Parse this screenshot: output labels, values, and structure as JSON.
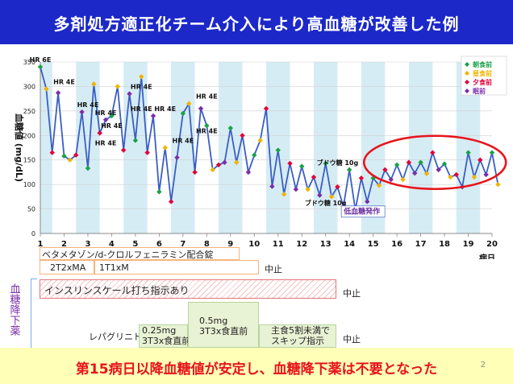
{
  "title": "多剤処方適正化チーム介入により高血糖が改善した例",
  "bottom_text": "第15病日以降血糖値が安定し、血糖降下薬は不要となった",
  "page_number": "2",
  "side_label": "血糖降下薬",
  "chart_data": {
    "type": "line",
    "ylabel": "血糖値 (mg/dL)",
    "xlabel": "病日",
    "ylim": [
      0,
      350
    ],
    "yticks": [
      0,
      50,
      100,
      150,
      200,
      250,
      300,
      350
    ],
    "xlim": [
      1,
      20
    ],
    "xticks": [
      "1",
      "2",
      "3",
      "4",
      "5",
      "6",
      "7",
      "8",
      "9",
      "10",
      "11",
      "12",
      "13",
      "14",
      "15",
      "16",
      "17",
      "18",
      "19",
      "20"
    ],
    "shaded_days": [
      1,
      3,
      5,
      7,
      9,
      11,
      13,
      15,
      17,
      19
    ],
    "legend": [
      "朝食前",
      "昼食前",
      "夕食前",
      "眠前"
    ],
    "legend_colors": [
      "#1aa049",
      "#f0b400",
      "#e0003c",
      "#7a2ea8"
    ],
    "line_color": "#3a5fc4",
    "values": [
      340,
      295,
      165,
      287,
      158,
      150,
      160,
      248,
      133,
      305,
      205,
      232,
      240,
      300,
      170,
      285,
      190,
      320,
      165,
      240,
      85,
      175,
      65,
      155,
      245,
      265,
      125,
      255,
      220,
      130,
      140,
      145,
      215,
      145,
      200,
      125,
      160,
      190,
      255,
      96,
      170,
      80,
      143,
      90,
      137,
      90,
      115,
      78,
      143,
      75,
      95,
      55,
      130,
      48,
      113,
      65,
      113,
      98,
      130,
      110,
      140,
      110,
      145,
      123,
      145,
      122,
      165,
      130,
      142,
      115,
      120,
      95,
      165,
      115,
      150,
      120,
      165,
      100
    ],
    "annotations": [
      {
        "text": "HR 6E",
        "x": 1.0,
        "y": 340
      },
      {
        "text": "HR 4E",
        "x": 2.0,
        "y": 295
      },
      {
        "text": "HR 4E",
        "x": 3.0,
        "y": 248
      },
      {
        "text": "HR 4E",
        "x": 3.75,
        "y": 232
      },
      {
        "text": "HR 4E",
        "x": 4.0,
        "y": 205
      },
      {
        "text": "HR 4E",
        "x": 3.75,
        "y": 170
      },
      {
        "text": "HR 4E",
        "x": 5.25,
        "y": 285
      },
      {
        "text": "HR 4E",
        "x": 5.25,
        "y": 240
      },
      {
        "text": "HR 4E",
        "x": 6.25,
        "y": 240
      },
      {
        "text": "HR 4E",
        "x": 7.0,
        "y": 175
      },
      {
        "text": "HR 4E",
        "x": 8.0,
        "y": 265
      },
      {
        "text": "HR 4E",
        "x": 8.0,
        "y": 195
      },
      {
        "text": "ブドウ糖 10g",
        "x": 13.5,
        "y": 130
      },
      {
        "text": "ブドウ糖 10g",
        "x": 13.0,
        "y": 48
      },
      {
        "text": "低血糖発作",
        "x": 14.0,
        "y": 30
      }
    ]
  },
  "medication": {
    "row1_label": "ベタメタゾン/d-クロルフェニラミン配合錠",
    "seg_a": "2T2xMA",
    "seg_b": "1T1xM",
    "stop1": "中止",
    "row2_label": "インスリンスケール打ち指示あり",
    "stop2": "中止",
    "repaglinide": "レパグリニド",
    "dose1": "0.25mg\n3T3x食直前",
    "dose2": "0.5mg\n3T3x食直前",
    "dose3": "主食5割未満で\nスキップ指示",
    "stop3": "中止"
  }
}
